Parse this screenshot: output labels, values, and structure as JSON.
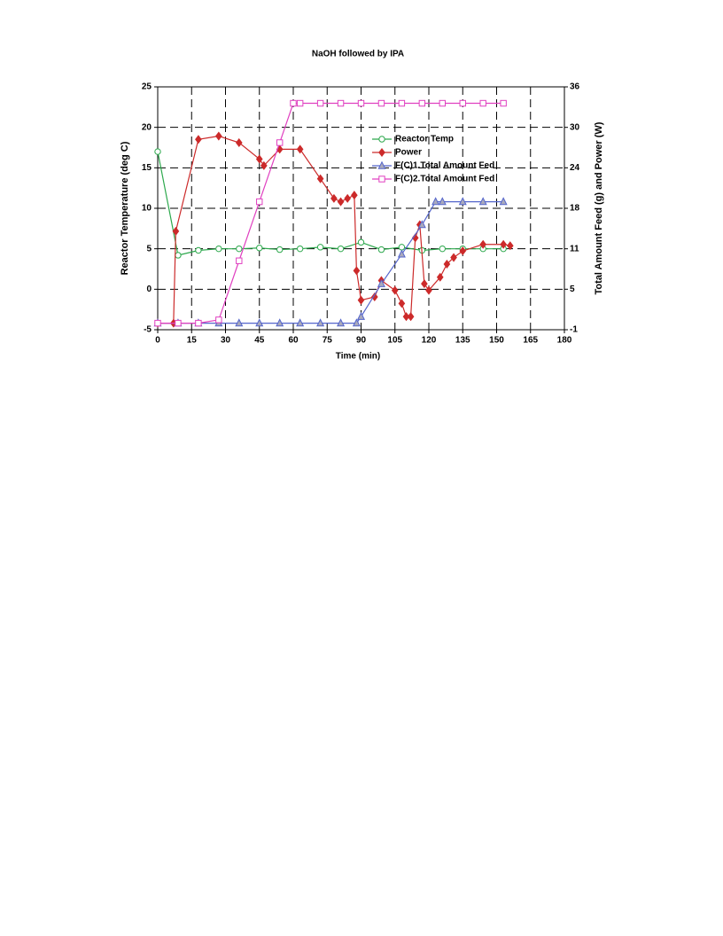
{
  "chart_data": {
    "type": "line",
    "title": "NaOH followed by IPA",
    "xlabel": "Time (min)",
    "ylabel": "Reactor Temperature (deg C)",
    "y2label": "Total Amount Feed (g) and Power (W)",
    "xlim": [
      0,
      180
    ],
    "xticks": [
      0,
      15,
      30,
      45,
      60,
      75,
      90,
      105,
      120,
      135,
      150,
      165,
      180
    ],
    "ylim": [
      -5,
      25
    ],
    "yticks": [
      -5,
      0,
      5,
      10,
      15,
      20,
      25
    ],
    "y2lim": [
      -1,
      36
    ],
    "y2ticks": [
      {
        "value": -1,
        "label": "-1"
      },
      {
        "value": 5.17,
        "label": "5"
      },
      {
        "value": 11.33,
        "label": "11"
      },
      {
        "value": 17.5,
        "label": "18"
      },
      {
        "value": 23.67,
        "label": "24"
      },
      {
        "value": 29.83,
        "label": "30"
      },
      {
        "value": 36,
        "label": "36"
      }
    ],
    "grid": true,
    "legend": "upper right",
    "series": [
      {
        "name": "Reactor Temp",
        "color": "#2ca84c",
        "marker": "circle",
        "x": [
          0,
          9,
          18,
          27,
          36,
          45,
          54,
          63,
          72,
          81,
          90,
          99,
          108,
          117,
          126,
          135,
          144,
          153
        ],
        "values": [
          17,
          4.2,
          4.8,
          5,
          5,
          5.1,
          4.9,
          5,
          5.2,
          5,
          5.8,
          4.9,
          5.2,
          4.8,
          5,
          5,
          5,
          5
        ]
      },
      {
        "name": "Power",
        "color": "#cc2a2a",
        "marker": "diamond",
        "axis": "y2",
        "x": [
          0,
          7,
          8,
          18,
          27,
          36,
          45,
          47,
          54,
          63,
          72,
          78,
          81,
          84,
          87,
          88,
          90,
          96,
          99,
          105,
          108,
          110,
          112,
          114,
          116,
          118,
          120,
          125,
          128,
          131,
          135,
          144,
          153,
          156
        ],
        "values": [
          0,
          0,
          14,
          28,
          28.5,
          27.5,
          25,
          24,
          26.5,
          26.5,
          22,
          19,
          18.5,
          19,
          19.5,
          8,
          3.5,
          4,
          6.5,
          5,
          3,
          1,
          1,
          13,
          15,
          6,
          5,
          7,
          9,
          10,
          11,
          12,
          12,
          11.8
        ]
      },
      {
        "name": "F(C)1.Total Amount Fed",
        "color": "#5566cc",
        "marker": "triangle",
        "axis": "y2",
        "x": [
          0,
          9,
          18,
          27,
          36,
          45,
          54,
          63,
          72,
          81,
          88,
          90,
          99,
          108,
          117,
          123,
          126,
          135,
          144,
          153
        ],
        "values": [
          0,
          0,
          0,
          0,
          0,
          0,
          0,
          0,
          0,
          0,
          0,
          1,
          6,
          10.5,
          15,
          18.5,
          18.5,
          18.5,
          18.5,
          18.5
        ]
      },
      {
        "name": "F(C)2.Total Amount Fed",
        "color": "#e040c0",
        "marker": "square",
        "axis": "y2",
        "x": [
          0,
          9,
          18,
          27,
          36,
          45,
          54,
          60,
          63,
          72,
          81,
          90,
          99,
          108,
          117,
          126,
          135,
          144,
          153
        ],
        "values": [
          0,
          0,
          0,
          0.5,
          9.5,
          18.5,
          27.5,
          33.5,
          33.5,
          33.5,
          33.5,
          33.5,
          33.5,
          33.5,
          33.5,
          33.5,
          33.5,
          33.5,
          33.5
        ]
      }
    ]
  }
}
